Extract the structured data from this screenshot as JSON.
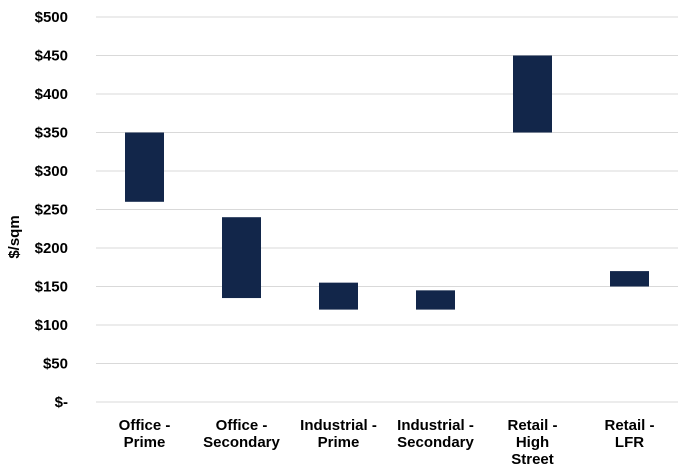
{
  "chart_data": {
    "type": "bar",
    "subtype": "floating-range",
    "title": "",
    "xlabel": "",
    "ylabel": "$/sqm",
    "ylim": [
      0,
      500
    ],
    "yticks": [
      0,
      50,
      100,
      150,
      200,
      250,
      300,
      350,
      400,
      450,
      500
    ],
    "ytick_labels": [
      "$-",
      "$50",
      "$100",
      "$150",
      "$200",
      "$250",
      "$300",
      "$350",
      "$400",
      "$450",
      "$500"
    ],
    "grid": true,
    "legend": "none",
    "bar_color": "#12264a",
    "categories": [
      [
        "Office -",
        "Prime"
      ],
      [
        "Office -",
        "Secondary"
      ],
      [
        "Industrial -",
        "Prime"
      ],
      [
        "Industrial -",
        "Secondary"
      ],
      [
        "Retail -",
        "High",
        "Street"
      ],
      [
        "Retail -",
        "LFR"
      ]
    ],
    "series": [
      {
        "low": [
          260,
          135,
          120,
          120,
          350,
          150
        ],
        "high": [
          350,
          240,
          155,
          145,
          450,
          170
        ]
      }
    ]
  }
}
